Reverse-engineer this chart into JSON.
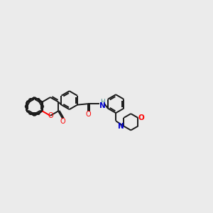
{
  "background_color": "#ebebeb",
  "bond_color": "#1a1a1a",
  "atom_colors": {
    "O": "#ff0000",
    "N": "#0000cc",
    "H": "#4a9090",
    "C": "#1a1a1a"
  },
  "figsize": [
    3.0,
    3.0
  ],
  "dpi": 100,
  "lw": 1.4,
  "r": 0.44
}
